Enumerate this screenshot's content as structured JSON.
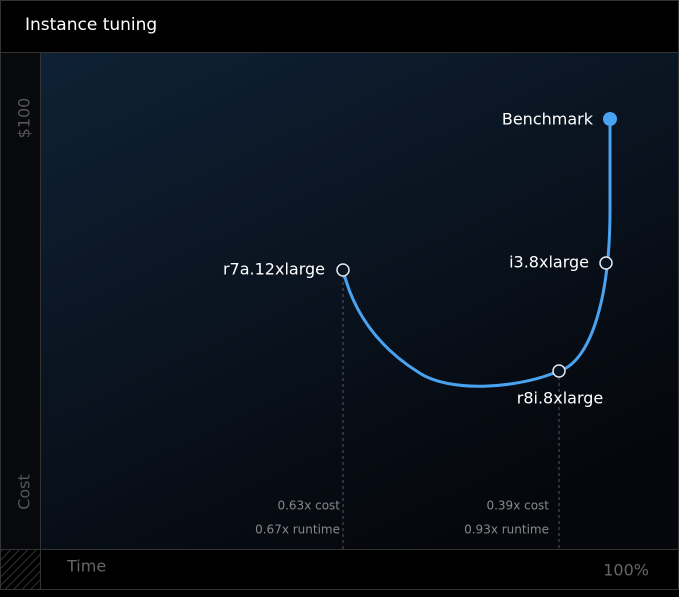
{
  "header": {
    "title": "Instance tuning"
  },
  "axes": {
    "y_top": "$100",
    "y_label": "Cost",
    "x_label": "Time",
    "x_end": "100%"
  },
  "points": [
    {
      "label": "Benchmark"
    },
    {
      "label": "i3.8xlarge"
    },
    {
      "label": "r8i.8xlarge",
      "cost": "0.39x cost",
      "runtime": "0.93x runtime"
    },
    {
      "label": "r7a.12xlarge",
      "cost": "0.63x cost",
      "runtime": "0.67x runtime"
    }
  ]
}
